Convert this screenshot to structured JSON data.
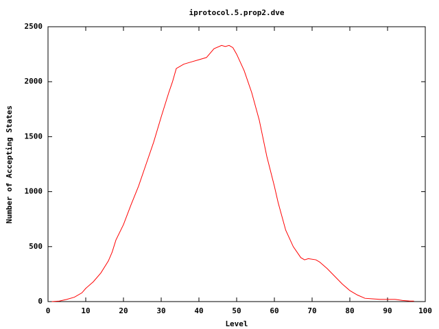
{
  "chart_data": {
    "type": "line",
    "title": "iprotocol.5.prop2.dve",
    "x_label": "Level",
    "y_label": "Number of Accepting States",
    "x": [
      1,
      3,
      5,
      7,
      9,
      10,
      12,
      14,
      16,
      17,
      18,
      20,
      22,
      24,
      26,
      28,
      30,
      32,
      33,
      34,
      36,
      38,
      40,
      42,
      44,
      46,
      47,
      48,
      49,
      50,
      52,
      54,
      56,
      58,
      60,
      61,
      63,
      65,
      67,
      68,
      69,
      71,
      72,
      74,
      76,
      78,
      80,
      82,
      84,
      86,
      88,
      90,
      92,
      94,
      96,
      97
    ],
    "series": [
      {
        "name": "iprotocol.5.prop2.dve",
        "color": "#ff0000",
        "values": [
          0,
          5,
          20,
          40,
          80,
          120,
          180,
          260,
          370,
          450,
          560,
          700,
          880,
          1050,
          1250,
          1450,
          1680,
          1900,
          2000,
          2120,
          2160,
          2180,
          2200,
          2220,
          2300,
          2330,
          2320,
          2330,
          2310,
          2250,
          2100,
          1900,
          1650,
          1320,
          1050,
          900,
          650,
          500,
          400,
          380,
          390,
          380,
          360,
          300,
          230,
          160,
          100,
          60,
          30,
          25,
          20,
          20,
          20,
          10,
          5,
          5
        ]
      }
    ],
    "xlim": [
      0,
      100
    ],
    "xticks": [
      0,
      10,
      20,
      30,
      40,
      50,
      60,
      70,
      80,
      90,
      100
    ],
    "ylim": [
      0,
      2500
    ],
    "yticks": [
      0,
      500,
      1000,
      1500,
      2000,
      2500
    ]
  }
}
